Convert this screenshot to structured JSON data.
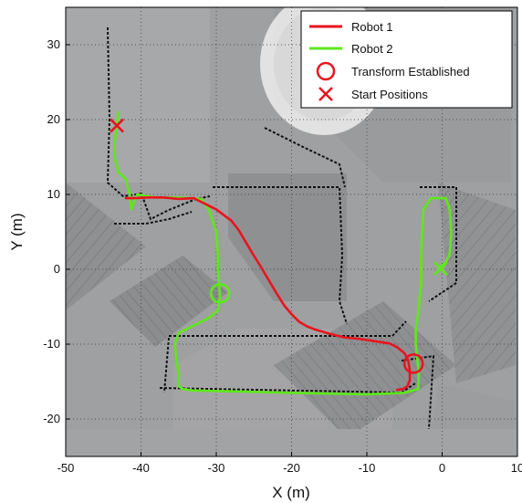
{
  "chart_data": {
    "type": "line",
    "title": "",
    "xlabel": "X (m)",
    "ylabel": "Y (m)",
    "xlim": [
      -50,
      10
    ],
    "ylim": [
      -25,
      35
    ],
    "xticks": [
      -50,
      -40,
      -30,
      -20,
      -10,
      0,
      10
    ],
    "yticks": [
      -20,
      -10,
      0,
      10,
      20,
      30
    ],
    "grid": true,
    "legend_position": "top-right",
    "background": "aerial map overlay with point cloud",
    "series": [
      {
        "name": "Robot 1",
        "color": "#e8141e",
        "x": [
          -42,
          -41,
          -39,
          -37,
          -35,
          -33,
          -32,
          -30,
          -28,
          -27,
          -26,
          -25,
          -24,
          -23,
          -22,
          -21,
          -20,
          -19,
          -18,
          -17,
          -15,
          -13,
          -11,
          -9,
          -7,
          -6,
          -5,
          -4.5,
          -4.3,
          -4.3,
          -4.6,
          -5.2,
          -6
        ],
        "y": [
          9.5,
          9.5,
          9.6,
          9.6,
          9.4,
          9.5,
          9.0,
          8.0,
          6.5,
          5.2,
          3.5,
          1.8,
          0.2,
          -1.5,
          -3.2,
          -4.8,
          -6.0,
          -7.0,
          -7.6,
          -8.0,
          -8.6,
          -9.1,
          -9.3,
          -9.6,
          -9.9,
          -10.4,
          -11.2,
          -12.2,
          -13.5,
          -14.8,
          -15.6,
          -16.0,
          -16.1
        ]
      },
      {
        "name": "Robot 2",
        "color": "#5ee81a",
        "x": [
          -43,
          -43.5,
          -43.5,
          -43,
          -42,
          -41.5,
          -41.3,
          -40.5,
          -38,
          -36,
          -33.5,
          -32,
          -31,
          -30,
          -29.8,
          -29.8,
          -29.5,
          -29.8,
          -31,
          -33,
          -35,
          -35.5,
          -35.3,
          -35,
          -35,
          -34.5,
          -33,
          -28,
          -20,
          -10,
          -5,
          -3.2,
          -3.1,
          -3.3,
          -3.5,
          -3.5,
          -3.2,
          -3,
          -2.8,
          -2.8,
          -2.5,
          -1.5,
          0.5,
          1,
          1.2,
          1,
          0.5,
          -0.5
        ],
        "y": [
          21,
          17,
          15,
          13,
          12,
          10,
          8,
          10,
          9.6,
          9.6,
          9.5,
          9.4,
          8,
          5,
          2,
          0,
          -3.5,
          -5.5,
          -6.5,
          -7.5,
          -8.5,
          -10,
          -12,
          -14,
          -15.6,
          -16,
          -16.2,
          -16.3,
          -16.5,
          -16.7,
          -16.5,
          -16,
          -14,
          -12,
          -10,
          -8,
          -6,
          -4,
          -2,
          2,
          8,
          9.5,
          9.5,
          8,
          5,
          2,
          1,
          0
        ]
      }
    ],
    "markers": [
      {
        "name": "Transform Established",
        "symbol": "circle",
        "color": "#5ee81a",
        "x": -29.5,
        "y": -3.2
      },
      {
        "name": "Transform Established",
        "symbol": "circle",
        "color": "#e8141e",
        "x": -3.8,
        "y": -12.6
      },
      {
        "name": "Start Positions",
        "symbol": "cross",
        "color": "#e8141e",
        "x": -43.2,
        "y": 19.2
      },
      {
        "name": "Start Positions",
        "symbol": "cross",
        "color": "#5ee81a",
        "x": -0.2,
        "y": 0.1
      }
    ],
    "legend": [
      {
        "label": "Robot 1",
        "kind": "line",
        "color": "#e8141e"
      },
      {
        "label": "Robot 2",
        "kind": "line",
        "color": "#5ee81a"
      },
      {
        "label": "Transform Established",
        "kind": "circle",
        "color": "#e8141e"
      },
      {
        "label": "Start Positions",
        "kind": "cross",
        "color": "#e8141e"
      }
    ]
  }
}
